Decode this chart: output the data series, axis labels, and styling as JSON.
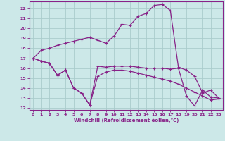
{
  "xlabel": "Windchill (Refroidissement éolien,°C)",
  "background_color": "#cce8e8",
  "grid_color": "#aacccc",
  "line_color": "#882288",
  "xlim": [
    -0.5,
    23.5
  ],
  "ylim": [
    11.8,
    22.7
  ],
  "xticks": [
    0,
    1,
    2,
    3,
    4,
    5,
    6,
    7,
    8,
    9,
    10,
    11,
    12,
    13,
    14,
    15,
    16,
    17,
    18,
    19,
    20,
    21,
    22,
    23
  ],
  "yticks": [
    12,
    13,
    14,
    15,
    16,
    17,
    18,
    19,
    20,
    21,
    22
  ],
  "curve1_x": [
    0,
    1,
    2,
    3,
    4,
    5,
    6,
    7,
    8,
    9,
    10,
    11,
    12,
    13,
    14,
    15,
    16,
    17,
    18,
    19,
    20,
    21,
    22,
    23
  ],
  "curve1_y": [
    17.0,
    17.8,
    18.0,
    18.3,
    18.5,
    18.7,
    18.9,
    19.1,
    18.8,
    18.5,
    19.2,
    20.4,
    20.3,
    21.2,
    21.5,
    22.3,
    22.4,
    21.8,
    16.1,
    15.8,
    15.2,
    13.5,
    13.8,
    13.0
  ],
  "curve2_x": [
    0,
    1,
    2,
    3,
    4,
    5,
    6,
    7,
    8,
    9,
    10,
    11,
    12,
    13,
    14,
    15,
    16,
    17,
    18,
    19,
    20,
    21,
    22,
    23
  ],
  "curve2_y": [
    17.0,
    16.7,
    16.5,
    15.3,
    15.8,
    14.0,
    13.5,
    12.3,
    16.2,
    16.1,
    16.2,
    16.2,
    16.2,
    16.1,
    16.0,
    16.0,
    16.0,
    15.9,
    16.0,
    13.2,
    12.2,
    13.8,
    13.1,
    13.0
  ],
  "curve3_x": [
    0,
    1,
    2,
    3,
    4,
    5,
    6,
    7,
    8,
    9,
    10,
    11,
    12,
    13,
    14,
    15,
    16,
    17,
    18,
    19,
    20,
    21,
    22,
    23
  ],
  "curve3_y": [
    17.0,
    16.7,
    16.5,
    15.3,
    15.8,
    14.0,
    13.5,
    12.3,
    15.2,
    15.6,
    15.8,
    15.8,
    15.7,
    15.5,
    15.3,
    15.1,
    14.9,
    14.7,
    14.4,
    14.0,
    13.6,
    13.2,
    12.8,
    12.9
  ]
}
